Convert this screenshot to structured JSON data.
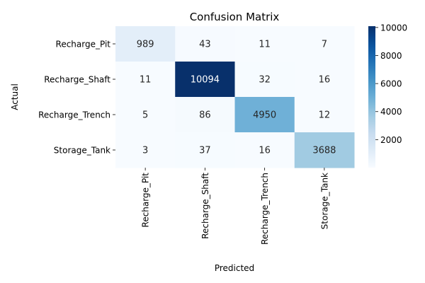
{
  "chart_data": {
    "type": "heatmap",
    "title": "Confusion Matrix",
    "xlabel": "Predicted",
    "ylabel": "Actual",
    "x_categories": [
      "Recharge_Pit",
      "Recharge_Shaft",
      "Recharge_Trench",
      "Storage_Tank"
    ],
    "y_categories": [
      "Recharge_Pit",
      "Recharge_Shaft",
      "Recharge_Trench",
      "Storage_Tank"
    ],
    "values": [
      [
        989,
        43,
        11,
        7
      ],
      [
        11,
        10094,
        32,
        16
      ],
      [
        5,
        86,
        4950,
        12
      ],
      [
        3,
        37,
        16,
        3688
      ]
    ],
    "colormap": "Blues",
    "colorbar": {
      "min": 0,
      "max": 10094,
      "ticks": [
        2000,
        4000,
        6000,
        8000,
        10000
      ]
    }
  }
}
